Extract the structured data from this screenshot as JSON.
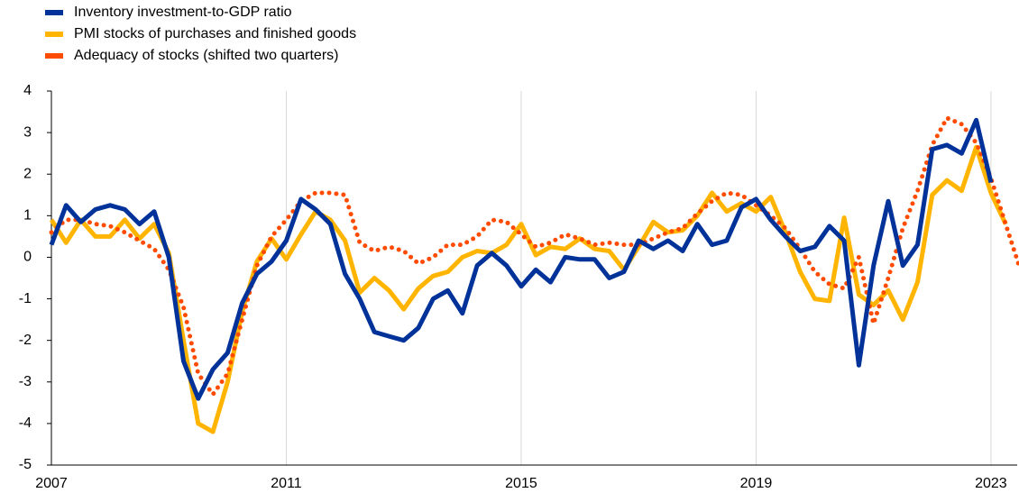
{
  "chart_data": {
    "type": "line",
    "categories": [
      "2007",
      null,
      null,
      null,
      null,
      null,
      null,
      null,
      null,
      null,
      null,
      null,
      null,
      null,
      null,
      null,
      "2011",
      null,
      null,
      null,
      null,
      null,
      null,
      null,
      null,
      null,
      null,
      null,
      null,
      null,
      null,
      null,
      "2015",
      null,
      null,
      null,
      null,
      null,
      null,
      null,
      null,
      null,
      null,
      null,
      null,
      null,
      null,
      null,
      "2019",
      null,
      null,
      null,
      null,
      null,
      null,
      null,
      null,
      null,
      null,
      null,
      null,
      null,
      null,
      null,
      "2023",
      null,
      null
    ],
    "series": [
      {
        "name": "Inventory investment-to-GDP ratio",
        "color": "#003299",
        "style": "solid",
        "values": [
          0.3,
          1.25,
          0.85,
          1.15,
          1.25,
          1.15,
          0.8,
          1.1,
          0.0,
          -2.5,
          -3.4,
          -2.7,
          -2.3,
          -1.1,
          -0.4,
          -0.1,
          0.4,
          1.4,
          1.15,
          0.8,
          -0.4,
          -1.0,
          -1.8,
          -1.9,
          -2.0,
          -1.7,
          -1.0,
          -0.8,
          -1.35,
          -0.2,
          0.1,
          -0.2,
          -0.7,
          -0.3,
          -0.6,
          0.0,
          -0.05,
          -0.05,
          -0.5,
          -0.35,
          0.4,
          0.2,
          0.4,
          0.15,
          0.8,
          0.3,
          0.4,
          1.2,
          1.4,
          0.9,
          0.5,
          0.15,
          0.25,
          0.75,
          0.4,
          -2.6,
          -0.2,
          1.35,
          -0.2,
          0.3,
          2.6,
          2.7,
          2.5,
          3.3,
          1.8,
          null,
          null
        ]
      },
      {
        "name": "PMI stocks of purchases and finished goods",
        "color": "#FFB400",
        "style": "solid",
        "values": [
          0.9,
          0.35,
          0.9,
          0.5,
          0.5,
          0.9,
          0.45,
          0.8,
          0.1,
          -2.0,
          -4.0,
          -4.2,
          -3.0,
          -1.3,
          -0.1,
          0.45,
          -0.05,
          0.55,
          1.1,
          0.9,
          0.4,
          -0.85,
          -0.5,
          -0.8,
          -1.25,
          -0.75,
          -0.45,
          -0.35,
          0.0,
          0.15,
          0.1,
          0.3,
          0.8,
          0.05,
          0.25,
          0.2,
          0.45,
          0.2,
          0.15,
          -0.3,
          0.25,
          0.85,
          0.6,
          0.65,
          1.0,
          1.55,
          1.1,
          1.3,
          1.1,
          1.45,
          0.6,
          -0.35,
          -1.0,
          -1.05,
          0.95,
          -0.9,
          -1.15,
          -0.8,
          -1.5,
          -0.6,
          1.5,
          1.85,
          1.6,
          2.65,
          1.55,
          0.8,
          null
        ]
      },
      {
        "name": "Adequacy of stocks (shifted two quarters)",
        "color": "#FF4B00",
        "style": "dotted",
        "values": [
          0.6,
          0.9,
          0.9,
          0.8,
          0.75,
          0.6,
          0.4,
          0.2,
          -0.3,
          -1.2,
          -2.8,
          -3.3,
          -2.8,
          -1.5,
          -0.2,
          0.5,
          0.9,
          1.35,
          1.55,
          1.55,
          1.5,
          0.35,
          0.15,
          0.25,
          0.15,
          -0.15,
          0.0,
          0.3,
          0.3,
          0.5,
          0.9,
          0.85,
          0.55,
          0.25,
          0.35,
          0.55,
          0.45,
          0.3,
          0.35,
          0.3,
          0.3,
          0.45,
          0.6,
          0.7,
          1.05,
          1.35,
          1.55,
          1.5,
          1.25,
          1.0,
          0.7,
          0.2,
          -0.35,
          -0.65,
          -0.75,
          0.0,
          -1.6,
          -0.5,
          0.7,
          1.6,
          2.7,
          3.35,
          3.2,
          2.75,
          1.9,
          0.8,
          -0.3
        ]
      }
    ],
    "ylim": [
      -5,
      4
    ],
    "yticks": [
      -5,
      -4,
      -3,
      -2,
      -1,
      0,
      1,
      2,
      3,
      4
    ],
    "grid": true,
    "legend": "top-left"
  }
}
